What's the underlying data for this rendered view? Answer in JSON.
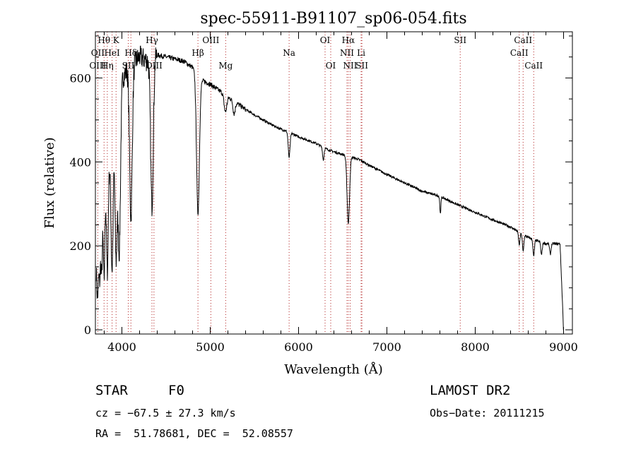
{
  "chart_data": {
    "type": "line",
    "title": "spec-55911-B91107_sp06-054.fits",
    "xlabel": "Wavelength (Å)",
    "ylabel": "Flux (relative)",
    "xlim": [
      3700,
      9100
    ],
    "ylim": [
      -10,
      710
    ],
    "x_ticks": [
      4000,
      5000,
      6000,
      7000,
      8000,
      9000
    ],
    "y_ticks": [
      0,
      200,
      400,
      600
    ],
    "line_color": "#000000",
    "marker_color": "#b22222",
    "spectral_lines": [
      {
        "label": "Hθ",
        "x": 3798,
        "row": 0
      },
      {
        "label": "K",
        "x": 3934,
        "row": 0
      },
      {
        "label": "OII",
        "x": 3727,
        "row": 1
      },
      {
        "label": "HeI",
        "x": 3889,
        "row": 1
      },
      {
        "label": "Hδ",
        "x": 4102,
        "row": 1
      },
      {
        "label": "OIII",
        "x": 3727,
        "row": 2
      },
      {
        "label": "Hη",
        "x": 3835,
        "row": 2
      },
      {
        "label": "SII",
        "x": 4072,
        "row": 2
      },
      {
        "label": "OIII",
        "x": 4363,
        "row": 2
      },
      {
        "label": "Hγ",
        "x": 4340,
        "row": 0
      },
      {
        "label": "OIII",
        "x": 5007,
        "row": 0
      },
      {
        "label": "Hβ",
        "x": 4861,
        "row": 1
      },
      {
        "label": "Mg",
        "x": 5175,
        "row": 2
      },
      {
        "label": "Na",
        "x": 5893,
        "row": 1
      },
      {
        "label": "OI",
        "x": 6300,
        "row": 0
      },
      {
        "label": "OI",
        "x": 6364,
        "row": 2
      },
      {
        "label": "Hα",
        "x": 6563,
        "row": 0
      },
      {
        "label": "NII",
        "x": 6548,
        "row": 1
      },
      {
        "label": "NII",
        "x": 6584,
        "row": 2
      },
      {
        "label": "Li",
        "x": 6708,
        "row": 1
      },
      {
        "label": "SII",
        "x": 6717,
        "row": 2
      },
      {
        "label": "SII",
        "x": 7830,
        "row": 0
      },
      {
        "label": "CaII",
        "x": 8542,
        "row": 0
      },
      {
        "label": "CaII",
        "x": 8498,
        "row": 1
      },
      {
        "label": "CaII",
        "x": 8662,
        "row": 2
      }
    ],
    "spectrum_anchors": [
      [
        3700,
        200
      ],
      [
        3800,
        320
      ],
      [
        3900,
        460
      ],
      [
        4000,
        600
      ],
      [
        4100,
        630
      ],
      [
        4200,
        650
      ],
      [
        4300,
        640
      ],
      [
        4400,
        655
      ],
      [
        4500,
        650
      ],
      [
        4600,
        645
      ],
      [
        4700,
        640
      ],
      [
        4800,
        625
      ],
      [
        4900,
        595
      ],
      [
        5000,
        585
      ],
      [
        5100,
        570
      ],
      [
        5200,
        555
      ],
      [
        5300,
        540
      ],
      [
        5400,
        525
      ],
      [
        5500,
        512
      ],
      [
        5600,
        500
      ],
      [
        5700,
        488
      ],
      [
        5800,
        478
      ],
      [
        5900,
        470
      ],
      [
        6000,
        460
      ],
      [
        6100,
        452
      ],
      [
        6200,
        444
      ],
      [
        6300,
        432
      ],
      [
        6400,
        424
      ],
      [
        6500,
        418
      ],
      [
        6600,
        412
      ],
      [
        6700,
        404
      ],
      [
        6800,
        392
      ],
      [
        7000,
        370
      ],
      [
        7200,
        350
      ],
      [
        7400,
        330
      ],
      [
        7600,
        318
      ],
      [
        7800,
        298
      ],
      [
        8000,
        280
      ],
      [
        8200,
        262
      ],
      [
        8400,
        245
      ],
      [
        8500,
        232
      ],
      [
        8600,
        220
      ],
      [
        8700,
        212
      ],
      [
        8800,
        205
      ],
      [
        8900,
        205
      ],
      [
        8960,
        205
      ],
      [
        9000,
        0
      ]
    ],
    "absorption_features": [
      [
        3725,
        150,
        12
      ],
      [
        3750,
        120,
        8
      ],
      [
        3771,
        150,
        8
      ],
      [
        3798,
        200,
        8
      ],
      [
        3835,
        230,
        10
      ],
      [
        3889,
        300,
        12
      ],
      [
        3934,
        330,
        12
      ],
      [
        3970,
        370,
        14
      ],
      [
        4102,
        360,
        15
      ],
      [
        4340,
        350,
        15
      ],
      [
        4861,
        330,
        16
      ],
      [
        5172,
        40,
        15
      ],
      [
        5270,
        30,
        12
      ],
      [
        5893,
        60,
        10
      ],
      [
        6280,
        30,
        8
      ],
      [
        6563,
        160,
        14
      ],
      [
        7605,
        40,
        6
      ],
      [
        8498,
        30,
        8
      ],
      [
        8542,
        40,
        8
      ],
      [
        8662,
        40,
        8
      ],
      [
        8750,
        30,
        8
      ],
      [
        8850,
        25,
        8
      ]
    ]
  },
  "info": {
    "object_type": "STAR",
    "subclass": "F0",
    "survey": "LAMOST DR2",
    "redshift": "cz = −67.5 ± 27.3 km/s",
    "obs_date": "Obs−Date: 20111215",
    "coords": "RA =  51.78681, DEC =  52.08557"
  }
}
